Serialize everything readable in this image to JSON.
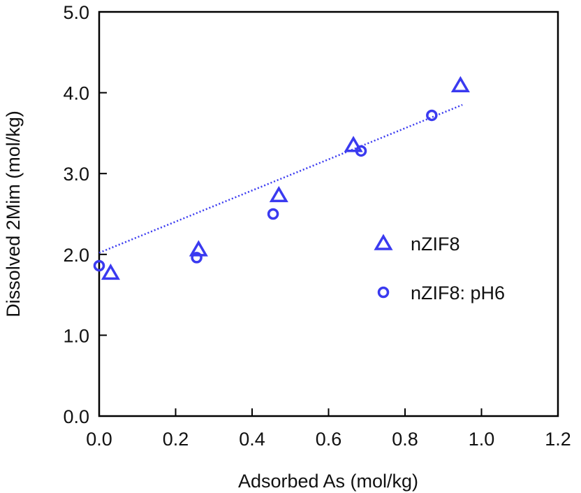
{
  "chart_data": {
    "type": "scatter",
    "xlabel": "Adsorbed As (mol/kg)",
    "ylabel": "Dissolved 2Mim (mol/kg)",
    "xlim": [
      0,
      1.2
    ],
    "ylim": [
      0,
      5.0
    ],
    "xticks": [
      "0.0",
      "0.2",
      "0.4",
      "0.6",
      "0.8",
      "1.0",
      "1.2"
    ],
    "yticks": [
      "0.0",
      "1.0",
      "2.0",
      "3.0",
      "4.0",
      "5.0"
    ],
    "grid": false,
    "legend_position": "right",
    "series": [
      {
        "name": "nZIF8",
        "marker": "triangle",
        "color": "#3a3af0",
        "x": [
          0.03,
          0.26,
          0.47,
          0.665,
          0.945
        ],
        "y": [
          1.77,
          2.06,
          2.73,
          3.35,
          4.09
        ]
      },
      {
        "name": "nZIF8: pH6",
        "marker": "circle",
        "color": "#3a3af0",
        "x": [
          0.0,
          0.255,
          0.455,
          0.685,
          0.87
        ],
        "y": [
          1.86,
          1.96,
          2.5,
          3.28,
          3.72
        ]
      }
    ],
    "trendline": {
      "style": "dotted",
      "color": "#3a3af0",
      "x": [
        0.0,
        0.95
      ],
      "y": [
        2.02,
        3.85
      ]
    }
  }
}
